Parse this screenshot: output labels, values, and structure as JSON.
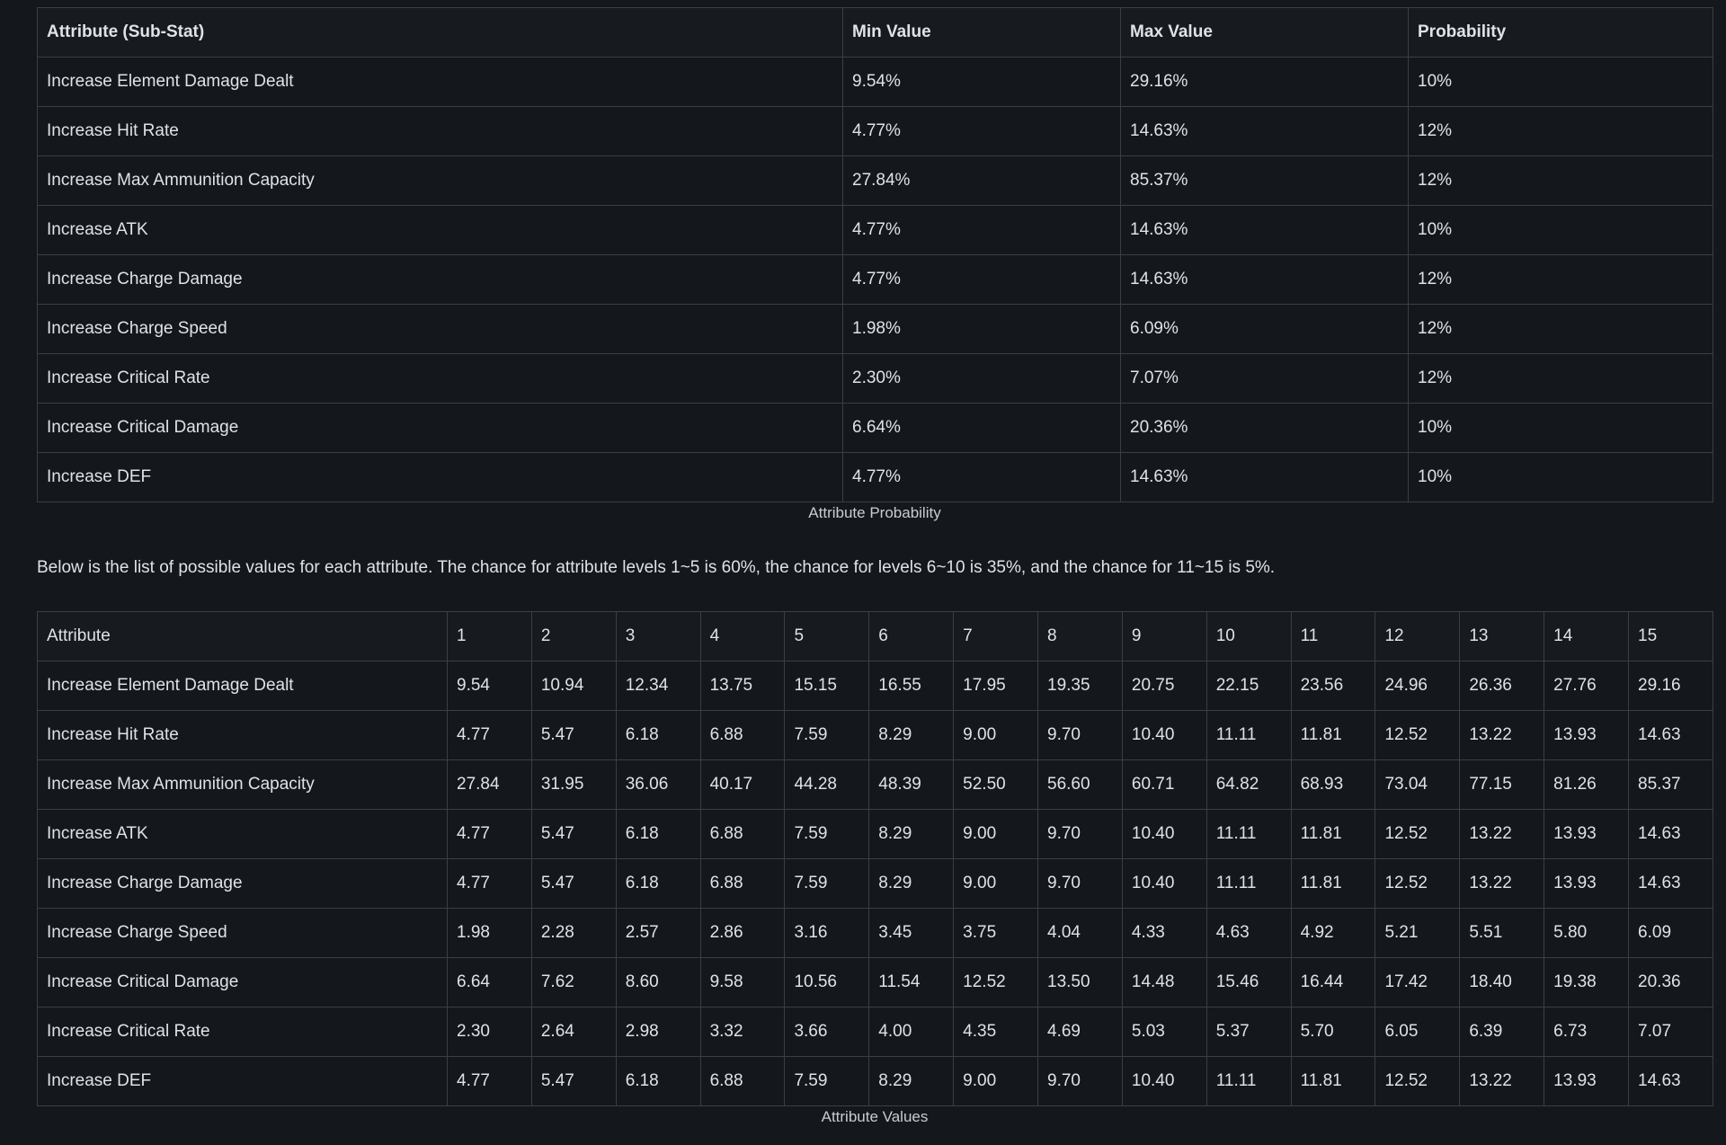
{
  "prob_table": {
    "headers": [
      "Attribute (Sub-Stat)",
      "Min Value",
      "Max Value",
      "Probability"
    ],
    "rows": [
      [
        "Increase Element Damage Dealt",
        "9.54%",
        "29.16%",
        "10%"
      ],
      [
        "Increase Hit Rate",
        "4.77%",
        "14.63%",
        "12%"
      ],
      [
        "Increase Max Ammunition Capacity",
        "27.84%",
        "85.37%",
        "12%"
      ],
      [
        "Increase ATK",
        "4.77%",
        "14.63%",
        "10%"
      ],
      [
        "Increase Charge Damage",
        "4.77%",
        "14.63%",
        "12%"
      ],
      [
        "Increase Charge Speed",
        "1.98%",
        "6.09%",
        "12%"
      ],
      [
        "Increase Critical Rate",
        "2.30%",
        "7.07%",
        "12%"
      ],
      [
        "Increase Critical Damage",
        "6.64%",
        "20.36%",
        "10%"
      ],
      [
        "Increase DEF",
        "4.77%",
        "14.63%",
        "10%"
      ]
    ],
    "caption": "Attribute Probability"
  },
  "intro_text": "Below is the list of possible values for each attribute. The chance for attribute levels 1~5 is 60%, the chance for levels 6~10 is 35%, and the chance for 11~15 is 5%.",
  "values_table": {
    "headers": [
      "Attribute",
      "1",
      "2",
      "3",
      "4",
      "5",
      "6",
      "7",
      "8",
      "9",
      "10",
      "11",
      "12",
      "13",
      "14",
      "15"
    ],
    "rows": [
      [
        "Increase Element Damage Dealt",
        "9.54",
        "10.94",
        "12.34",
        "13.75",
        "15.15",
        "16.55",
        "17.95",
        "19.35",
        "20.75",
        "22.15",
        "23.56",
        "24.96",
        "26.36",
        "27.76",
        "29.16"
      ],
      [
        "Increase Hit Rate",
        "4.77",
        "5.47",
        "6.18",
        "6.88",
        "7.59",
        "8.29",
        "9.00",
        "9.70",
        "10.40",
        "11.11",
        "11.81",
        "12.52",
        "13.22",
        "13.93",
        "14.63"
      ],
      [
        "Increase Max Ammunition Capacity",
        "27.84",
        "31.95",
        "36.06",
        "40.17",
        "44.28",
        "48.39",
        "52.50",
        "56.60",
        "60.71",
        "64.82",
        "68.93",
        "73.04",
        "77.15",
        "81.26",
        "85.37"
      ],
      [
        "Increase ATK",
        "4.77",
        "5.47",
        "6.18",
        "6.88",
        "7.59",
        "8.29",
        "9.00",
        "9.70",
        "10.40",
        "11.11",
        "11.81",
        "12.52",
        "13.22",
        "13.93",
        "14.63"
      ],
      [
        "Increase Charge Damage",
        "4.77",
        "5.47",
        "6.18",
        "6.88",
        "7.59",
        "8.29",
        "9.00",
        "9.70",
        "10.40",
        "11.11",
        "11.81",
        "12.52",
        "13.22",
        "13.93",
        "14.63"
      ],
      [
        "Increase Charge Speed",
        "1.98",
        "2.28",
        "2.57",
        "2.86",
        "3.16",
        "3.45",
        "3.75",
        "4.04",
        "4.33",
        "4.63",
        "4.92",
        "5.21",
        "5.51",
        "5.80",
        "6.09"
      ],
      [
        "Increase Critical Damage",
        "6.64",
        "7.62",
        "8.60",
        "9.58",
        "10.56",
        "11.54",
        "12.52",
        "13.50",
        "14.48",
        "15.46",
        "16.44",
        "17.42",
        "18.40",
        "19.38",
        "20.36"
      ],
      [
        "Increase Critical Rate",
        "2.30",
        "2.64",
        "2.98",
        "3.32",
        "3.66",
        "4.00",
        "4.35",
        "4.69",
        "5.03",
        "5.37",
        "5.70",
        "6.05",
        "6.39",
        "6.73",
        "7.07"
      ],
      [
        "Increase DEF",
        "4.77",
        "5.47",
        "6.18",
        "6.88",
        "7.59",
        "8.29",
        "9.00",
        "9.70",
        "10.40",
        "11.11",
        "11.81",
        "12.52",
        "13.22",
        "13.93",
        "14.63"
      ]
    ],
    "caption": "Attribute Values"
  }
}
